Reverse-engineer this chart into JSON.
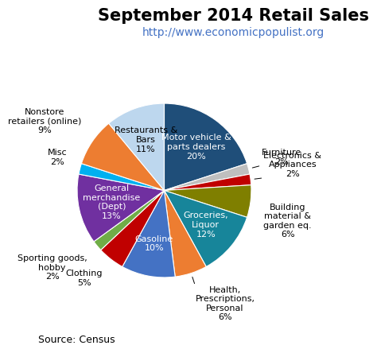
{
  "title": "September 2014 Retail Sales",
  "subtitle": "http://www.economicpopulist.org",
  "source": "Source: Census",
  "slices": [
    {
      "label": "Motor vehicle &\nparts dealers\n20%",
      "value": 20,
      "color": "#1F4E79",
      "label_inside": true,
      "label_color": "white"
    },
    {
      "label": "Furniture\n2%",
      "value": 2,
      "color": "#BFBFBF",
      "label_inside": false,
      "label_color": "black"
    },
    {
      "label": "Electronics &\nAppliances\n2%",
      "value": 2,
      "color": "#C00000",
      "label_inside": false,
      "label_color": "black"
    },
    {
      "label": "Building\nmaterial &\ngarden eq.\n6%",
      "value": 6,
      "color": "#7F7F00",
      "label_inside": false,
      "label_color": "black"
    },
    {
      "label": "Groceries,\nLiquor\n12%",
      "value": 12,
      "color": "#17859A",
      "label_inside": true,
      "label_color": "white"
    },
    {
      "label": "Health,\nPrescriptions,\nPersonal\n6%",
      "value": 6,
      "color": "#ED7D31",
      "label_inside": false,
      "label_color": "black"
    },
    {
      "label": "Gasoline\n10%",
      "value": 10,
      "color": "#4472C4",
      "label_inside": true,
      "label_color": "white"
    },
    {
      "label": "Clothing\n5%",
      "value": 5,
      "color": "#C00000",
      "label_inside": false,
      "label_color": "black"
    },
    {
      "label": "Sporting goods,\nhobby\n2%",
      "value": 2,
      "color": "#70AD47",
      "label_inside": false,
      "label_color": "black"
    },
    {
      "label": "General\nmerchandise\n(Dept)\n13%",
      "value": 13,
      "color": "#7030A0",
      "label_inside": true,
      "label_color": "white"
    },
    {
      "label": "Misc\n2%",
      "value": 2,
      "color": "#00B0F0",
      "label_inside": false,
      "label_color": "black"
    },
    {
      "label": "Nonstore\nretailers (online)\n9%",
      "value": 9,
      "color": "#ED7D31",
      "label_inside": false,
      "label_color": "black"
    },
    {
      "label": "Restaurants &\nBars\n11%",
      "value": 11,
      "color": "#BDD7EE",
      "label_inside": true,
      "label_color": "black"
    }
  ],
  "title_fontsize": 15,
  "subtitle_fontsize": 10,
  "subtitle_color": "#4472C4",
  "source_fontsize": 9,
  "label_fontsize": 8,
  "background_color": "#FFFFFF"
}
